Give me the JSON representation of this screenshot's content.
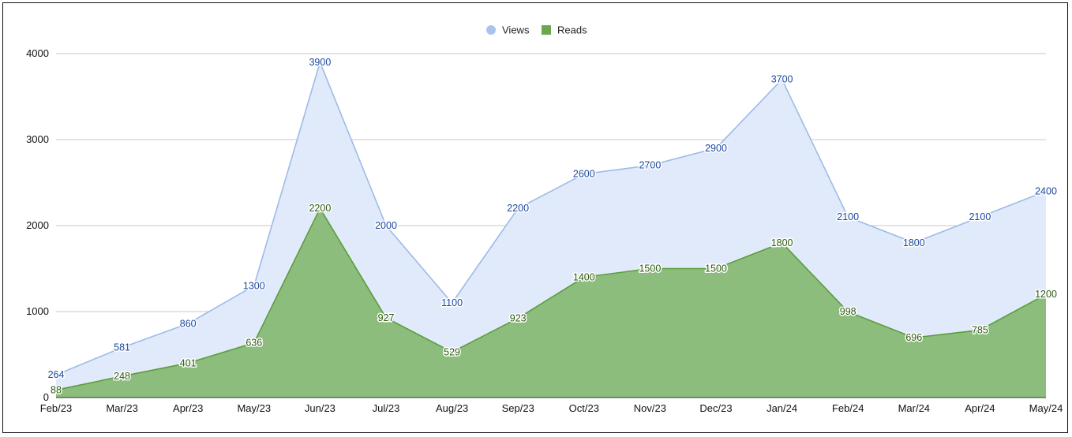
{
  "chart_data": {
    "type": "area",
    "categories": [
      "Feb/23",
      "Mar/23",
      "Apr/23",
      "May/23",
      "Jun/23",
      "Jul/23",
      "Aug/23",
      "Sep/23",
      "Oct/23",
      "Nov/23",
      "Dec/23",
      "Jan/24",
      "Feb/24",
      "Mar/24",
      "Apr/24",
      "May/24"
    ],
    "series": [
      {
        "name": "Views",
        "values": [
          264,
          581,
          860,
          1300,
          3900,
          2000,
          1100,
          2200,
          2600,
          2700,
          2900,
          3700,
          2100,
          1800,
          2100,
          2400
        ],
        "line_color": "#9dbbe8",
        "fill_color": "#e1eafa",
        "label_color": "#1c48a0",
        "legend_color": "#a8c4ee"
      },
      {
        "name": "Reads",
        "values": [
          88,
          248,
          401,
          636,
          2200,
          927,
          529,
          923,
          1400,
          1500,
          1500,
          1800,
          998,
          696,
          785,
          1200
        ],
        "line_color": "#5a9e3c",
        "fill_color": "#8cbd7d",
        "label_color": "#2c5a10",
        "legend_color": "#6aa84f"
      }
    ],
    "y_ticks": [
      0,
      1000,
      2000,
      3000,
      4000
    ],
    "ylim": [
      0,
      4000
    ],
    "title": "",
    "xlabel": "",
    "ylabel": "",
    "grid": true,
    "legend_position": "top-center"
  }
}
